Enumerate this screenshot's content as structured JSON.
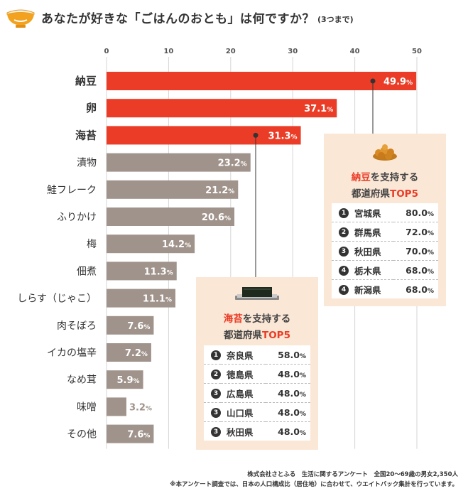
{
  "header": {
    "title": "あなたが好きな「ごはんのおとも」は何ですか？",
    "note": "(3つまで)"
  },
  "colors": {
    "top": "#ea3c26",
    "rest": "#a0938b",
    "panel_bg": "#fbe7d6",
    "accent_text": "#ea3c26"
  },
  "chart_data": {
    "type": "bar",
    "orientation": "horizontal",
    "title": "あなたが好きな「ごはんのおとも」は何ですか？",
    "unit": "%",
    "xlim": [
      0,
      50
    ],
    "xticks": [
      "0",
      "10",
      "20",
      "30",
      "40",
      "50"
    ],
    "categories": [
      "納豆",
      "卵",
      "海苔",
      "漬物",
      "鮭フレーク",
      "ふりかけ",
      "梅",
      "佃煮",
      "しらす（じゃこ）",
      "肉そぼろ",
      "イカの塩辛",
      "なめ茸",
      "味噌",
      "その他"
    ],
    "values": [
      49.9,
      37.1,
      31.3,
      23.2,
      21.2,
      20.6,
      14.2,
      11.3,
      11.1,
      7.6,
      7.2,
      5.9,
      3.2,
      7.6
    ],
    "highlight_count": 3,
    "grid": true
  },
  "panels": {
    "natto": {
      "head_hl": "納豆",
      "head_rest": "を支持する",
      "head_line2": "都道府県",
      "head_line2_hl": "TOP5",
      "icon": "natto-icon",
      "rows": [
        {
          "rank": "1",
          "pref": "宮城県",
          "pct": "80.0",
          "unit": "%"
        },
        {
          "rank": "2",
          "pref": "群馬県",
          "pct": "72.0",
          "unit": "%"
        },
        {
          "rank": "3",
          "pref": "秋田県",
          "pct": "70.0",
          "unit": "%"
        },
        {
          "rank": "4",
          "pref": "栃木県",
          "pct": "68.0",
          "unit": "%"
        },
        {
          "rank": "4",
          "pref": "新潟県",
          "pct": "68.0",
          "unit": "%"
        }
      ]
    },
    "nori": {
      "head_hl": "海苔",
      "head_rest": "を支持する",
      "head_line2": "都道府県",
      "head_line2_hl": "TOP5",
      "icon": "nori-icon",
      "rows": [
        {
          "rank": "1",
          "pref": "奈良県",
          "pct": "58.0",
          "unit": "%"
        },
        {
          "rank": "2",
          "pref": "徳島県",
          "pct": "48.0",
          "unit": "%"
        },
        {
          "rank": "3",
          "pref": "広島県",
          "pct": "48.0",
          "unit": "%"
        },
        {
          "rank": "3",
          "pref": "山口県",
          "pct": "48.0",
          "unit": "%"
        },
        {
          "rank": "3",
          "pref": "秋田県",
          "pct": "48.0",
          "unit": "%"
        }
      ]
    }
  },
  "footer": {
    "line1": "株式会社さとふる　生活に関するアンケート　全国20～69歳の男女2,350人",
    "line2": "※本アンケート調査では、日本の人口構成比（居住地）に合わせて、ウエイトバック集計を行っています。"
  }
}
